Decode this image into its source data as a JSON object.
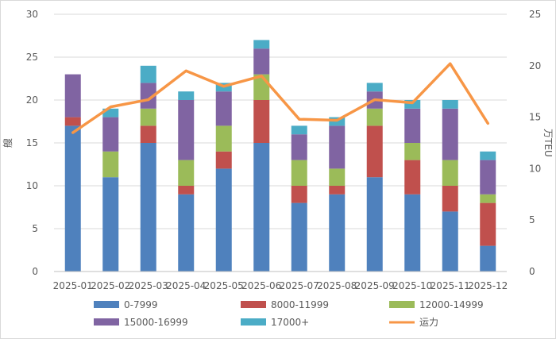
{
  "chart_data": {
    "type": "bar",
    "stacked": true,
    "categories": [
      "2025-01",
      "2025-02",
      "2025-03",
      "2025-04",
      "2025-05",
      "2025-06",
      "2025-07",
      "2025-08",
      "2025-09",
      "2025-10",
      "2025-11",
      "2025-12"
    ],
    "series": [
      {
        "name": "0-7999",
        "color": "#4F81BD",
        "values": [
          17,
          11,
          15,
          9,
          12,
          15,
          8,
          9,
          11,
          9,
          7,
          3
        ]
      },
      {
        "name": "8000-11999",
        "color": "#C0504D",
        "values": [
          1,
          0,
          2,
          1,
          2,
          5,
          2,
          1,
          6,
          4,
          3,
          5
        ]
      },
      {
        "name": "12000-14999",
        "color": "#9BBB59",
        "values": [
          0,
          3,
          2,
          3,
          3,
          3,
          3,
          2,
          2,
          2,
          3,
          1
        ]
      },
      {
        "name": "15000-16999",
        "color": "#8064A2",
        "values": [
          5,
          4,
          3,
          7,
          4,
          3,
          3,
          5,
          2,
          4,
          6,
          4
        ]
      },
      {
        "name": "17000+",
        "color": "#4BACC6",
        "values": [
          0,
          1,
          2,
          1,
          1,
          1,
          1,
          1,
          1,
          1,
          1,
          1
        ]
      }
    ],
    "line": {
      "name": "运力",
      "color": "#F79646",
      "axis": "right",
      "values": [
        13.5,
        16.0,
        16.7,
        19.5,
        18.0,
        19.0,
        14.8,
        14.7,
        16.7,
        16.4,
        20.2,
        14.4
      ]
    },
    "ylabel_left": "艘",
    "ylabel_right": "万TEU",
    "ylim_left": [
      0,
      30
    ],
    "yticks_left": [
      0,
      5,
      10,
      15,
      20,
      25,
      30
    ],
    "ylim_right": [
      0,
      25
    ],
    "yticks_right": [
      0,
      5,
      10,
      15,
      20,
      25
    ],
    "grid": true,
    "legend_position": "bottom"
  }
}
